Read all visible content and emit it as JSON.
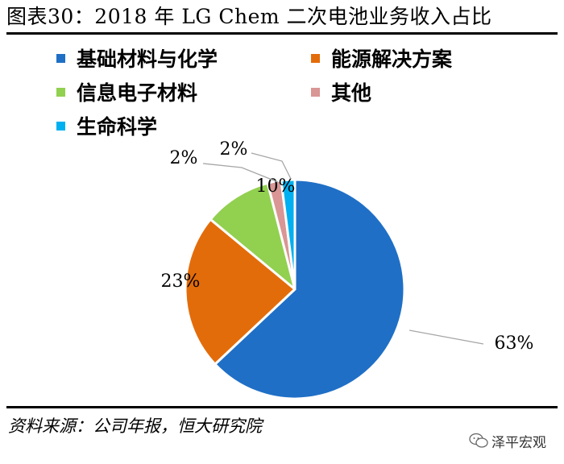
{
  "title": "图表30：2018 年 LG Chem 二次电池业务收入占比",
  "source": "资料来源：公司年报，恒大研究院",
  "brand": {
    "name": "泽平宏观",
    "icon": "wechat-icon"
  },
  "legend_title": "",
  "chart_data": {
    "type": "pie",
    "title": "图表30：2018 年 LG Chem 二次电池业务收入占比",
    "legend_position": "top",
    "slices": [
      {
        "label": "基础材料与化学",
        "value": 63,
        "display": "63%",
        "color": "#1F6FC6"
      },
      {
        "label": "能源解决方案",
        "value": 23,
        "display": "23%",
        "color": "#E36C0A"
      },
      {
        "label": "信息电子材料",
        "value": 10,
        "display": "10%",
        "color": "#92D050"
      },
      {
        "label": "其他",
        "value": 2,
        "display": "2%",
        "color": "#D99694"
      },
      {
        "label": "生命科学",
        "value": 2,
        "display": "2%",
        "color": "#00B0F0"
      }
    ]
  }
}
